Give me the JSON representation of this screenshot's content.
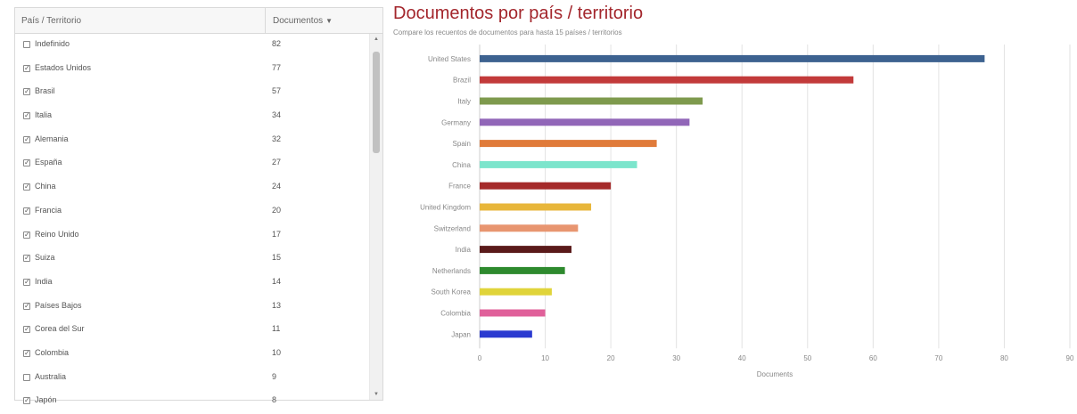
{
  "table": {
    "header_name": "País / Territorio",
    "header_docs": "Documentos",
    "sort_icon": "▼",
    "rows": [
      {
        "label": "Indefinido",
        "count": "82",
        "checked": false
      },
      {
        "label": "Estados Unidos",
        "count": "77",
        "checked": true
      },
      {
        "label": "Brasil",
        "count": "57",
        "checked": true
      },
      {
        "label": "Italia",
        "count": "34",
        "checked": true
      },
      {
        "label": "Alemania",
        "count": "32",
        "checked": true
      },
      {
        "label": "España",
        "count": "27",
        "checked": true
      },
      {
        "label": "China",
        "count": "24",
        "checked": true
      },
      {
        "label": "Francia",
        "count": "20",
        "checked": true
      },
      {
        "label": "Reino Unido",
        "count": "17",
        "checked": true
      },
      {
        "label": "Suiza",
        "count": "15",
        "checked": true
      },
      {
        "label": "India",
        "count": "14",
        "checked": true
      },
      {
        "label": "Países Bajos",
        "count": "13",
        "checked": true
      },
      {
        "label": "Corea del Sur",
        "count": "11",
        "checked": true
      },
      {
        "label": "Colombia",
        "count": "10",
        "checked": true
      },
      {
        "label": "Australia",
        "count": "9",
        "checked": false
      },
      {
        "label": "Japón",
        "count": "8",
        "checked": true
      }
    ]
  },
  "header": {
    "title": "Documentos por país / territorio",
    "subtitle": "Compare los recuentos de documentos para hasta 15 países / territorios"
  },
  "chart_data": {
    "type": "bar",
    "orientation": "horizontal",
    "categories": [
      "United States",
      "Brazil",
      "Italy",
      "Germany",
      "Spain",
      "China",
      "France",
      "United Kingdom",
      "Switzerland",
      "India",
      "Netherlands",
      "South Korea",
      "Colombia",
      "Japan"
    ],
    "values": [
      77,
      57,
      34,
      32,
      27,
      24,
      20,
      17,
      15,
      14,
      13,
      11,
      10,
      8
    ],
    "colors": [
      "#3d6290",
      "#c23a3a",
      "#7e9a4d",
      "#9166b8",
      "#e07b3a",
      "#7ce5cc",
      "#a52a2a",
      "#e8b63a",
      "#e89570",
      "#5a1a1a",
      "#2e8a2e",
      "#e0d43a",
      "#e0609a",
      "#2a3ad0"
    ],
    "xlabel": "Documents",
    "xlim": [
      0,
      90
    ],
    "xticks": [
      0,
      10,
      20,
      30,
      40,
      50,
      60,
      70,
      80,
      90
    ],
    "grid": true
  }
}
